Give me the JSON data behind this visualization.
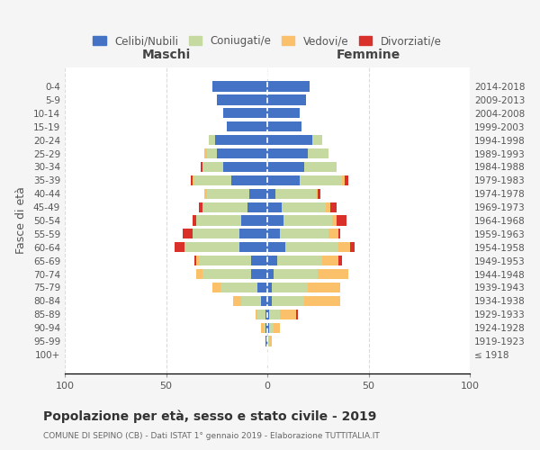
{
  "age_groups": [
    "100+",
    "95-99",
    "90-94",
    "85-89",
    "80-84",
    "75-79",
    "70-74",
    "65-69",
    "60-64",
    "55-59",
    "50-54",
    "45-49",
    "40-44",
    "35-39",
    "30-34",
    "25-29",
    "20-24",
    "15-19",
    "10-14",
    "5-9",
    "0-4"
  ],
  "birth_years": [
    "≤ 1918",
    "1919-1923",
    "1924-1928",
    "1929-1933",
    "1934-1938",
    "1939-1943",
    "1944-1948",
    "1949-1953",
    "1954-1958",
    "1959-1963",
    "1964-1968",
    "1969-1973",
    "1974-1978",
    "1979-1983",
    "1984-1988",
    "1989-1993",
    "1994-1998",
    "1999-2003",
    "2004-2008",
    "2009-2013",
    "2014-2018"
  ],
  "maschi": {
    "celibi": [
      0,
      1,
      1,
      1,
      3,
      5,
      8,
      8,
      14,
      14,
      13,
      10,
      9,
      18,
      22,
      25,
      26,
      20,
      22,
      25,
      27
    ],
    "coniugati": [
      0,
      0,
      1,
      4,
      10,
      18,
      24,
      26,
      27,
      23,
      22,
      22,
      21,
      18,
      10,
      5,
      3,
      0,
      0,
      0,
      0
    ],
    "vedovi": [
      0,
      0,
      1,
      1,
      4,
      4,
      3,
      1,
      0,
      0,
      0,
      0,
      1,
      1,
      0,
      1,
      0,
      0,
      0,
      0,
      0
    ],
    "divorziati": [
      0,
      0,
      0,
      0,
      0,
      0,
      0,
      1,
      5,
      5,
      2,
      2,
      0,
      1,
      1,
      0,
      0,
      0,
      0,
      0,
      0
    ]
  },
  "femmine": {
    "nubili": [
      0,
      0,
      1,
      1,
      2,
      2,
      3,
      5,
      9,
      6,
      8,
      7,
      4,
      16,
      18,
      20,
      22,
      17,
      16,
      19,
      21
    ],
    "coniugate": [
      0,
      1,
      2,
      5,
      16,
      18,
      22,
      22,
      26,
      24,
      24,
      22,
      20,
      21,
      16,
      10,
      5,
      0,
      0,
      0,
      0
    ],
    "vedove": [
      0,
      1,
      3,
      8,
      18,
      16,
      15,
      8,
      6,
      5,
      2,
      2,
      1,
      1,
      0,
      0,
      0,
      0,
      0,
      0,
      0
    ],
    "divorziate": [
      0,
      0,
      0,
      1,
      0,
      0,
      0,
      2,
      2,
      1,
      5,
      3,
      1,
      2,
      0,
      0,
      0,
      0,
      0,
      0,
      0
    ]
  },
  "colors": {
    "celibi": "#4472c4",
    "coniugati": "#c5d9a0",
    "vedovi": "#fac06a",
    "divorziati": "#d9312a"
  },
  "xlim": 100,
  "xlabel_left": "Maschi",
  "xlabel_right": "Femmine",
  "ylabel_left": "Fasce di età",
  "title": "Popolazione per età, sesso e stato civile - 2019",
  "subtitle": "COMUNE DI SEPINO (CB) - Dati ISTAT 1° gennaio 2019 - Elaborazione TUTTITALIA.IT",
  "legend_labels": [
    "Celibi/Nubili",
    "Coniugati/e",
    "Vedovi/e",
    "Divorziati/e"
  ],
  "bg_color": "#f5f5f5",
  "plot_bg": "#ffffff",
  "grid_color": "#cccccc"
}
